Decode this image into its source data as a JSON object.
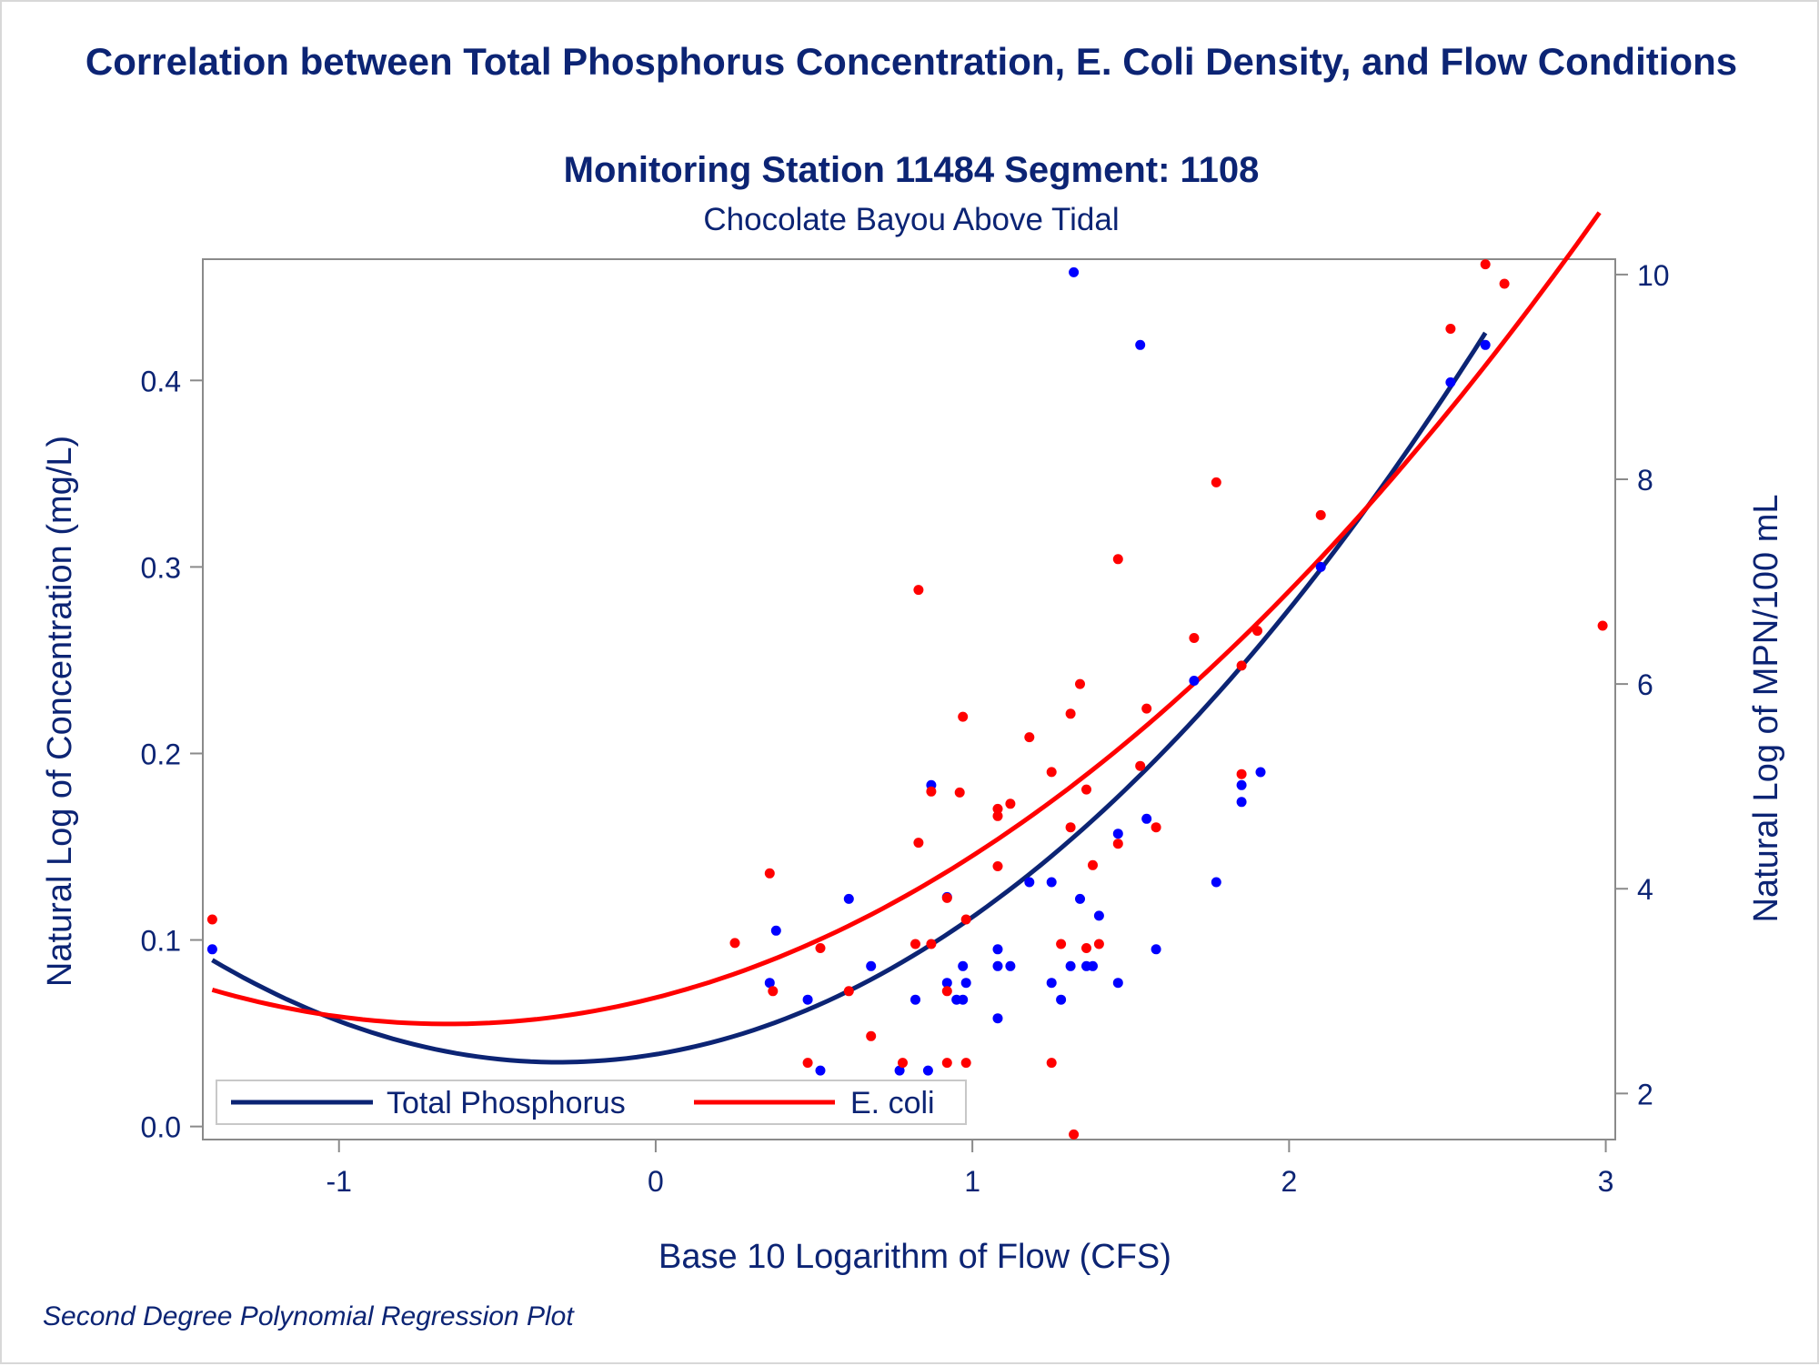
{
  "chart_data": {
    "type": "scatter",
    "title": "Correlation between Total Phosphorus Concentration, E. Coli Density, and Flow Conditions",
    "subtitle": "Monitoring Station 11484 Segment: 1108",
    "subtitle2": "Chocolate Bayou Above Tidal",
    "footnote": "Second Degree Polynomial Regression Plot",
    "xlabel": "Base 10 Logarithm of Flow (CFS)",
    "ylabel": "Natural Log of Concentration (mg/L)",
    "y2label": "Natural Log of MPN/100 mL",
    "xlim": [
      -1.43,
      3.03
    ],
    "ylim": [
      -0.007,
      0.465
    ],
    "y2lim": [
      1.55,
      10.15
    ],
    "xticks": [
      -1,
      0,
      1,
      2,
      3
    ],
    "xtick_labels": [
      "-1",
      "0",
      "1",
      "2",
      "3"
    ],
    "yticks": [
      0.0,
      0.1,
      0.2,
      0.3,
      0.4
    ],
    "ytick_labels": [
      "0.0",
      "0.1",
      "0.2",
      "0.3",
      "0.4"
    ],
    "y2ticks": [
      2,
      4,
      6,
      8,
      10
    ],
    "y2tick_labels": [
      "2",
      "4",
      "6",
      "8",
      "10"
    ],
    "grid": false,
    "legend_position": "bottom-left",
    "series": [
      {
        "name": "Total Phosphorus",
        "axis": "left",
        "color": "#0000ff",
        "line_color": "#0c2474",
        "points": [
          [
            -1.4,
            0.095
          ],
          [
            0.38,
            0.105
          ],
          [
            0.36,
            0.077
          ],
          [
            0.48,
            0.068
          ],
          [
            0.52,
            0.03
          ],
          [
            0.61,
            0.122
          ],
          [
            0.68,
            0.086
          ],
          [
            0.77,
            0.03
          ],
          [
            0.82,
            0.068
          ],
          [
            0.86,
            0.03
          ],
          [
            0.87,
            0.183
          ],
          [
            0.92,
            0.123
          ],
          [
            0.92,
            0.077
          ],
          [
            0.95,
            0.068
          ],
          [
            0.97,
            0.068
          ],
          [
            0.97,
            0.086
          ],
          [
            0.98,
            0.077
          ],
          [
            1.08,
            0.095
          ],
          [
            1.08,
            0.086
          ],
          [
            1.08,
            0.058
          ],
          [
            1.12,
            0.086
          ],
          [
            1.18,
            0.131
          ],
          [
            1.25,
            0.131
          ],
          [
            1.25,
            0.077
          ],
          [
            1.28,
            0.068
          ],
          [
            1.31,
            0.086
          ],
          [
            1.32,
            0.458
          ],
          [
            1.34,
            0.122
          ],
          [
            1.36,
            0.086
          ],
          [
            1.38,
            0.086
          ],
          [
            1.4,
            0.113
          ],
          [
            1.46,
            0.157
          ],
          [
            1.46,
            0.077
          ],
          [
            1.53,
            0.419
          ],
          [
            1.55,
            0.165
          ],
          [
            1.58,
            0.095
          ],
          [
            1.7,
            0.239
          ],
          [
            1.77,
            0.131
          ],
          [
            1.85,
            0.183
          ],
          [
            1.85,
            0.174
          ],
          [
            1.91,
            0.19
          ],
          [
            2.1,
            0.3
          ],
          [
            2.51,
            0.399
          ],
          [
            2.62,
            0.419
          ]
        ],
        "fit": {
          "degree": 2,
          "a": 0.0387,
          "b": 0.0279,
          "c": 0.0457,
          "x_range": [
            -1.4,
            2.62
          ]
        }
      },
      {
        "name": "E. coli",
        "axis": "right",
        "color": "#ff0000",
        "line_color": "#ff0000",
        "points": [
          [
            -1.4,
            3.7
          ],
          [
            0.25,
            3.47
          ],
          [
            0.36,
            4.15
          ],
          [
            0.37,
            3.0
          ],
          [
            0.48,
            2.3
          ],
          [
            0.52,
            3.42
          ],
          [
            0.61,
            3.0
          ],
          [
            0.68,
            2.56
          ],
          [
            0.78,
            2.3
          ],
          [
            0.82,
            3.46
          ],
          [
            0.83,
            4.45
          ],
          [
            0.83,
            6.92
          ],
          [
            0.87,
            3.46
          ],
          [
            0.87,
            4.95
          ],
          [
            0.92,
            3.91
          ],
          [
            0.92,
            3.0
          ],
          [
            0.92,
            2.3
          ],
          [
            0.96,
            4.94
          ],
          [
            0.97,
            5.68
          ],
          [
            0.98,
            3.7
          ],
          [
            0.98,
            2.3
          ],
          [
            1.08,
            4.78
          ],
          [
            1.08,
            4.71
          ],
          [
            1.08,
            4.22
          ],
          [
            1.12,
            4.83
          ],
          [
            1.18,
            5.48
          ],
          [
            1.25,
            2.3
          ],
          [
            1.25,
            5.14
          ],
          [
            1.28,
            3.46
          ],
          [
            1.31,
            5.71
          ],
          [
            1.31,
            4.6
          ],
          [
            1.32,
            1.6
          ],
          [
            1.34,
            6.0
          ],
          [
            1.36,
            3.42
          ],
          [
            1.36,
            4.97
          ],
          [
            1.38,
            4.23
          ],
          [
            1.4,
            3.46
          ],
          [
            1.46,
            4.44
          ],
          [
            1.46,
            7.22
          ],
          [
            1.53,
            5.2
          ],
          [
            1.55,
            5.76
          ],
          [
            1.58,
            4.6
          ],
          [
            1.7,
            6.45
          ],
          [
            1.77,
            7.97
          ],
          [
            1.85,
            6.18
          ],
          [
            1.85,
            5.12
          ],
          [
            1.9,
            6.52
          ],
          [
            2.1,
            7.65
          ],
          [
            2.51,
            9.47
          ],
          [
            2.62,
            10.1
          ],
          [
            2.68,
            9.91
          ],
          [
            2.99,
            6.57
          ]
        ],
        "fit": {
          "degree": 2,
          "a": 2.936,
          "b": 0.7855,
          "c": 0.6,
          "x_range": [
            -1.4,
            2.98
          ]
        }
      }
    ]
  }
}
